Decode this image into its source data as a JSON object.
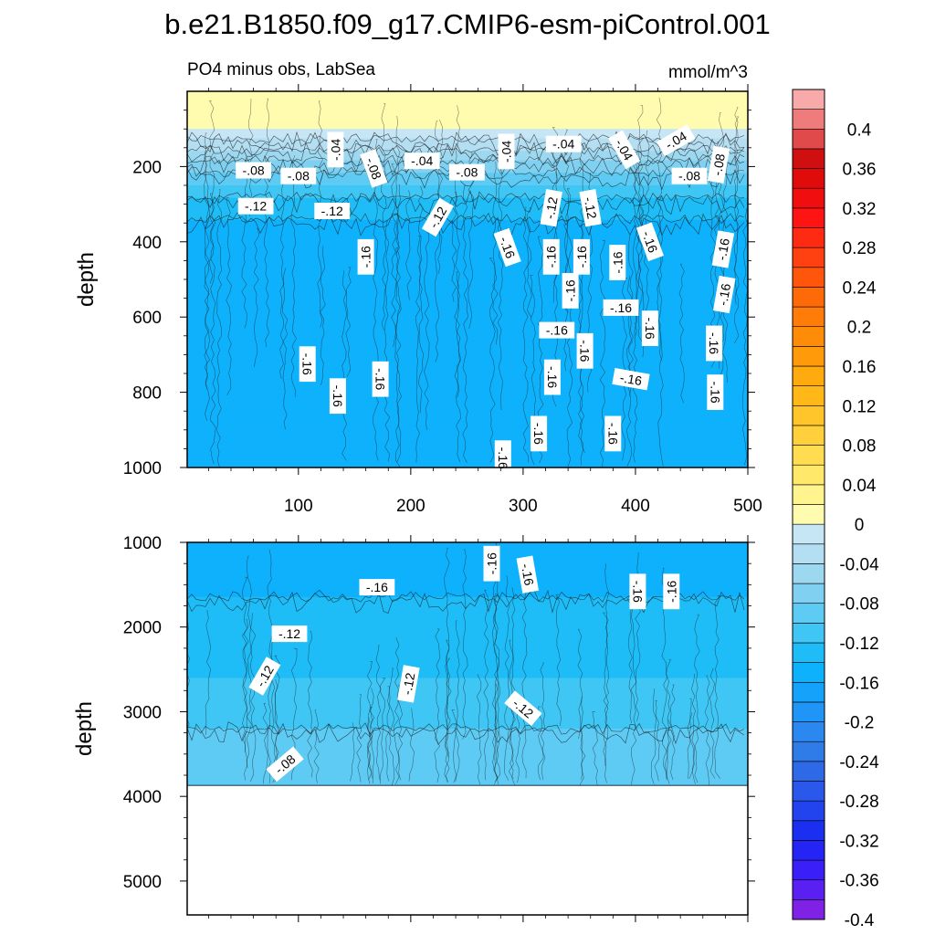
{
  "chart_data": {
    "type": "heatmap",
    "title": "b.e21.B1850.f09_g17.CMIP6-esm-piControl.001",
    "subtitle_left": "PO4 minus obs, LabSea",
    "subtitle_right": "mmol/m^3",
    "grid": false,
    "legend": "right",
    "colorbar": {
      "min": -0.4,
      "max": 0.42,
      "step": 0.02,
      "tick_labels": [
        {
          "value": 0.4,
          "label": "0.4"
        },
        {
          "value": 0.36,
          "label": "0.36"
        },
        {
          "value": 0.32,
          "label": "0.32"
        },
        {
          "value": 0.28,
          "label": "0.28"
        },
        {
          "value": 0.24,
          "label": "0.24"
        },
        {
          "value": 0.2,
          "label": "0.2"
        },
        {
          "value": 0.16,
          "label": "0.16"
        },
        {
          "value": 0.12,
          "label": "0.12"
        },
        {
          "value": 0.08,
          "label": "0.08"
        },
        {
          "value": 0.04,
          "label": "0.04"
        },
        {
          "value": 0,
          "label": "0"
        },
        {
          "value": -0.04,
          "label": "-0.04"
        },
        {
          "value": -0.08,
          "label": "-0.08"
        },
        {
          "value": -0.12,
          "label": "-0.12"
        },
        {
          "value": -0.16,
          "label": "-0.16"
        },
        {
          "value": -0.2,
          "label": "-0.2"
        },
        {
          "value": -0.24,
          "label": "-0.24"
        },
        {
          "value": -0.28,
          "label": "-0.28"
        },
        {
          "value": -0.32,
          "label": "-0.32"
        },
        {
          "value": -0.36,
          "label": "-0.36"
        },
        {
          "value": -0.4,
          "label": "-0.4"
        }
      ],
      "colors": [
        "#7f22e6",
        "#5a20f2",
        "#3b1ff8",
        "#2424f5",
        "#1b2ff0",
        "#2244ee",
        "#2a58ea",
        "#2e6ae8",
        "#2f7be8",
        "#2b88f0",
        "#1f96f7",
        "#14a2fb",
        "#0eb1fb",
        "#1ebdf7",
        "#3fc6f4",
        "#5ecbf4",
        "#80d1f1",
        "#9dd8f1",
        "#b4def2",
        "#c6e6f6",
        "#fffcb0",
        "#fff48e",
        "#ffe86a",
        "#ffdc50",
        "#ffd03c",
        "#ffc52a",
        "#ffb818",
        "#ffaa0e",
        "#ff9b0a",
        "#ff8c08",
        "#ff7c08",
        "#ff6a08",
        "#ff560c",
        "#ff4010",
        "#ff2a12",
        "#ff1414",
        "#f00e0e",
        "#e00c0c",
        "#d01010",
        "#e04a4a",
        "#ef7c7c",
        "#f8aaaa"
      ]
    },
    "panels": [
      {
        "name": "upper",
        "ylabel": "depth",
        "xlim": [
          1,
          500
        ],
        "ylim": [
          1000,
          0
        ],
        "x_tick_labels": [
          "100",
          "200",
          "300",
          "400",
          "500"
        ],
        "x_ticks": [
          100,
          200,
          300,
          400,
          500
        ],
        "y_tick_labels": [
          "200",
          "400",
          "600",
          "800",
          "1000"
        ],
        "y_ticks": [
          200,
          400,
          600,
          800,
          1000
        ],
        "data_floor": 1000,
        "profile": [
          {
            "depth": 0,
            "value": 0.02
          },
          {
            "depth": 100,
            "value": 0.0
          },
          {
            "depth": 140,
            "value": -0.03
          },
          {
            "depth": 200,
            "value": -0.07
          },
          {
            "depth": 250,
            "value": -0.1
          },
          {
            "depth": 300,
            "value": -0.13
          },
          {
            "depth": 400,
            "value": -0.155
          },
          {
            "depth": 600,
            "value": -0.16
          },
          {
            "depth": 1000,
            "value": -0.16
          }
        ],
        "contour_labels": [
          {
            "x": 60,
            "depth": 210,
            "text": "-.08",
            "angle": 0
          },
          {
            "x": 100,
            "depth": 225,
            "text": "-.08",
            "angle": 0
          },
          {
            "x": 133,
            "depth": 155,
            "text": "-.04",
            "angle": -90
          },
          {
            "x": 167,
            "depth": 205,
            "text": "-.08",
            "angle": 70
          },
          {
            "x": 210,
            "depth": 185,
            "text": "-.04",
            "angle": 0
          },
          {
            "x": 250,
            "depth": 215,
            "text": "-.08",
            "angle": 0
          },
          {
            "x": 285,
            "depth": 160,
            "text": "-.04",
            "angle": -90
          },
          {
            "x": 336,
            "depth": 140,
            "text": "-.04",
            "angle": 0
          },
          {
            "x": 390,
            "depth": 155,
            "text": "-.04",
            "angle": 60
          },
          {
            "x": 436,
            "depth": 130,
            "text": "-.04",
            "angle": -30
          },
          {
            "x": 448,
            "depth": 225,
            "text": "-.08",
            "angle": 0
          },
          {
            "x": 474,
            "depth": 195,
            "text": "-.08",
            "angle": -80
          },
          {
            "x": 62,
            "depth": 305,
            "text": "-.12",
            "angle": 0
          },
          {
            "x": 130,
            "depth": 318,
            "text": "-.12",
            "angle": 0
          },
          {
            "x": 224,
            "depth": 335,
            "text": "-.12",
            "angle": -60
          },
          {
            "x": 325,
            "depth": 310,
            "text": "-.12",
            "angle": -80
          },
          {
            "x": 360,
            "depth": 310,
            "text": "-.12",
            "angle": 80
          },
          {
            "x": 286,
            "depth": 415,
            "text": "-.16",
            "angle": 70
          },
          {
            "x": 160,
            "depth": 440,
            "text": "-.16",
            "angle": -90
          },
          {
            "x": 325,
            "depth": 440,
            "text": "-.16",
            "angle": -90
          },
          {
            "x": 352,
            "depth": 440,
            "text": "-.16",
            "angle": -90
          },
          {
            "x": 384,
            "depth": 455,
            "text": "-.16",
            "angle": -90
          },
          {
            "x": 413,
            "depth": 400,
            "text": "-.16",
            "angle": 70
          },
          {
            "x": 478,
            "depth": 420,
            "text": "-.16",
            "angle": -80
          },
          {
            "x": 479,
            "depth": 540,
            "text": "-.16",
            "angle": -80
          },
          {
            "x": 342,
            "depth": 530,
            "text": "-.16",
            "angle": -90
          },
          {
            "x": 387,
            "depth": 575,
            "text": "-.16",
            "angle": 0
          },
          {
            "x": 413,
            "depth": 630,
            "text": "-.16",
            "angle": 90
          },
          {
            "x": 330,
            "depth": 635,
            "text": "-.16",
            "angle": 0
          },
          {
            "x": 355,
            "depth": 690,
            "text": "-.16",
            "angle": 90
          },
          {
            "x": 470,
            "depth": 670,
            "text": "-.16",
            "angle": 90
          },
          {
            "x": 108,
            "depth": 725,
            "text": "-.16",
            "angle": 90
          },
          {
            "x": 326,
            "depth": 760,
            "text": "-.16",
            "angle": 90
          },
          {
            "x": 173,
            "depth": 765,
            "text": "-.16",
            "angle": 90
          },
          {
            "x": 396,
            "depth": 765,
            "text": "-.16",
            "angle": 10
          },
          {
            "x": 135,
            "depth": 810,
            "text": "-.16",
            "angle": 90
          },
          {
            "x": 471,
            "depth": 800,
            "text": "-.16",
            "angle": 90
          },
          {
            "x": 314,
            "depth": 910,
            "text": "-.16",
            "angle": 90
          },
          {
            "x": 380,
            "depth": 910,
            "text": "-.16",
            "angle": 90
          },
          {
            "x": 282,
            "depth": 975,
            "text": "-.16",
            "angle": 90
          }
        ]
      },
      {
        "name": "lower",
        "ylabel": "depth",
        "xlim": [
          1,
          500
        ],
        "ylim": [
          5400,
          1000
        ],
        "x_tick_labels": [],
        "x_ticks": [
          100,
          200,
          300,
          400,
          500
        ],
        "y_tick_labels": [
          "1000",
          "2000",
          "3000",
          "4000",
          "5000"
        ],
        "y_ticks": [
          1000,
          2000,
          3000,
          4000,
          5000
        ],
        "data_floor": 3870,
        "profile": [
          {
            "depth": 1000,
            "value": -0.16
          },
          {
            "depth": 1500,
            "value": -0.145
          },
          {
            "depth": 2000,
            "value": -0.128
          },
          {
            "depth": 2600,
            "value": -0.12
          },
          {
            "depth": 3000,
            "value": -0.11
          },
          {
            "depth": 3300,
            "value": -0.095
          },
          {
            "depth": 3600,
            "value": -0.085
          },
          {
            "depth": 3870,
            "value": -0.08
          }
        ],
        "contour_labels": [
          {
            "x": 170,
            "depth": 1530,
            "text": "-.16",
            "angle": 0
          },
          {
            "x": 272,
            "depth": 1250,
            "text": "-.16",
            "angle": -90
          },
          {
            "x": 304,
            "depth": 1380,
            "text": "-.16",
            "angle": 80
          },
          {
            "x": 402,
            "depth": 1580,
            "text": "-.16",
            "angle": 90
          },
          {
            "x": 432,
            "depth": 1580,
            "text": "-.16",
            "angle": -90
          },
          {
            "x": 92,
            "depth": 2080,
            "text": "-.12",
            "angle": 0
          },
          {
            "x": 70,
            "depth": 2580,
            "text": "-.12",
            "angle": -60
          },
          {
            "x": 198,
            "depth": 2670,
            "text": "-.12",
            "angle": -80
          },
          {
            "x": 300,
            "depth": 2960,
            "text": "-.12",
            "angle": 40
          },
          {
            "x": 88,
            "depth": 3620,
            "text": "-.08",
            "angle": -40
          }
        ]
      }
    ]
  }
}
